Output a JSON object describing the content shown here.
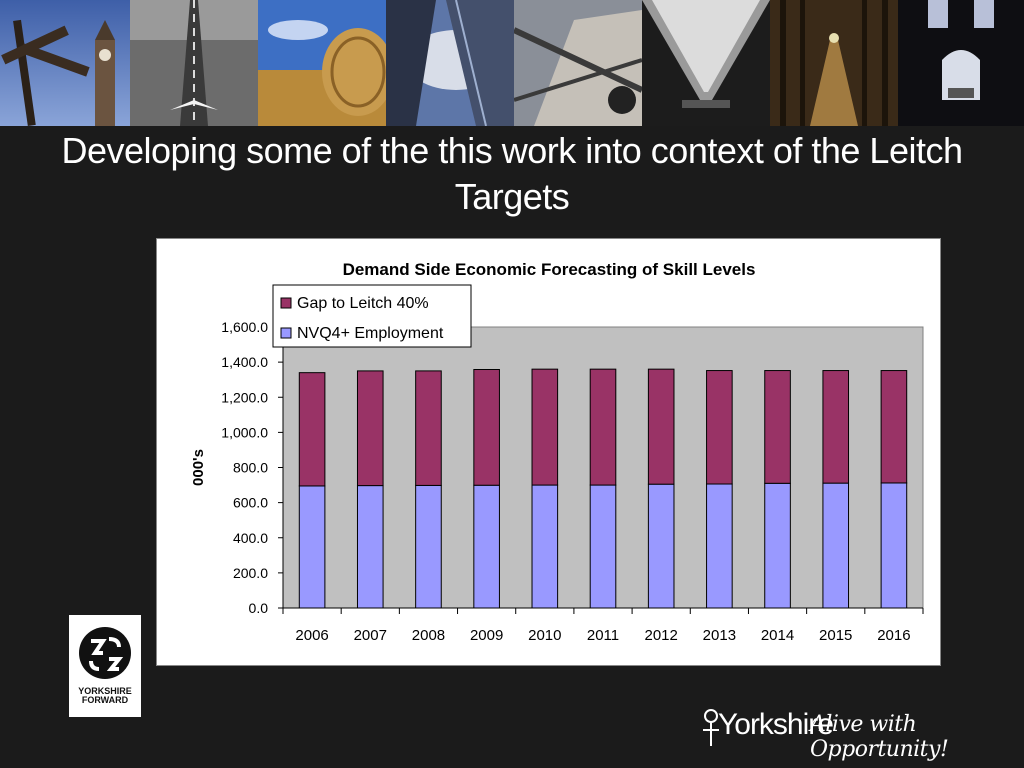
{
  "slide": {
    "title_line1": "Developing some of the this work into context of the Leitch",
    "title_line2": "Targets"
  },
  "photos": [
    "signpost-clock-tower",
    "runway-aircraft",
    "hay-bale-field",
    "glass-tower-clouds",
    "steel-structure-sign",
    "tunnel-ceiling",
    "forest-path",
    "dark-corridor-light"
  ],
  "chart_data": {
    "type": "bar",
    "stacked": true,
    "title": "Demand Side Economic Forecasting of Skill Levels",
    "xlabel": "",
    "ylabel": "000's",
    "categories": [
      "2006",
      "2007",
      "2008",
      "2009",
      "2010",
      "2011",
      "2012",
      "2013",
      "2014",
      "2015",
      "2016"
    ],
    "series": [
      {
        "name": "NVQ4+ Employment",
        "color": "#9999ff",
        "values": [
          695,
          697,
          698,
          699,
          700,
          700,
          705,
          706,
          710,
          711,
          712
        ]
      },
      {
        "name": "Gap to Leitch 40%",
        "color": "#993366",
        "values": [
          645,
          653,
          652,
          659,
          660,
          660,
          655,
          646,
          642,
          641,
          640
        ]
      }
    ],
    "ylim": [
      0,
      1600
    ],
    "yticks": [
      "0.0",
      "200.0",
      "400.0",
      "600.0",
      "800.0",
      "1,000.0",
      "1,200.0",
      "1,400.0",
      "1,600.0"
    ],
    "legend_position": "top-left",
    "plot_background": "#c0c0c0",
    "grid": false
  },
  "logo_left": {
    "line1": "YORKSHIRE",
    "line2": "FORWARD"
  },
  "brand": {
    "name": "Yorkshire",
    "tagline": "Alive with Opportunity!"
  }
}
